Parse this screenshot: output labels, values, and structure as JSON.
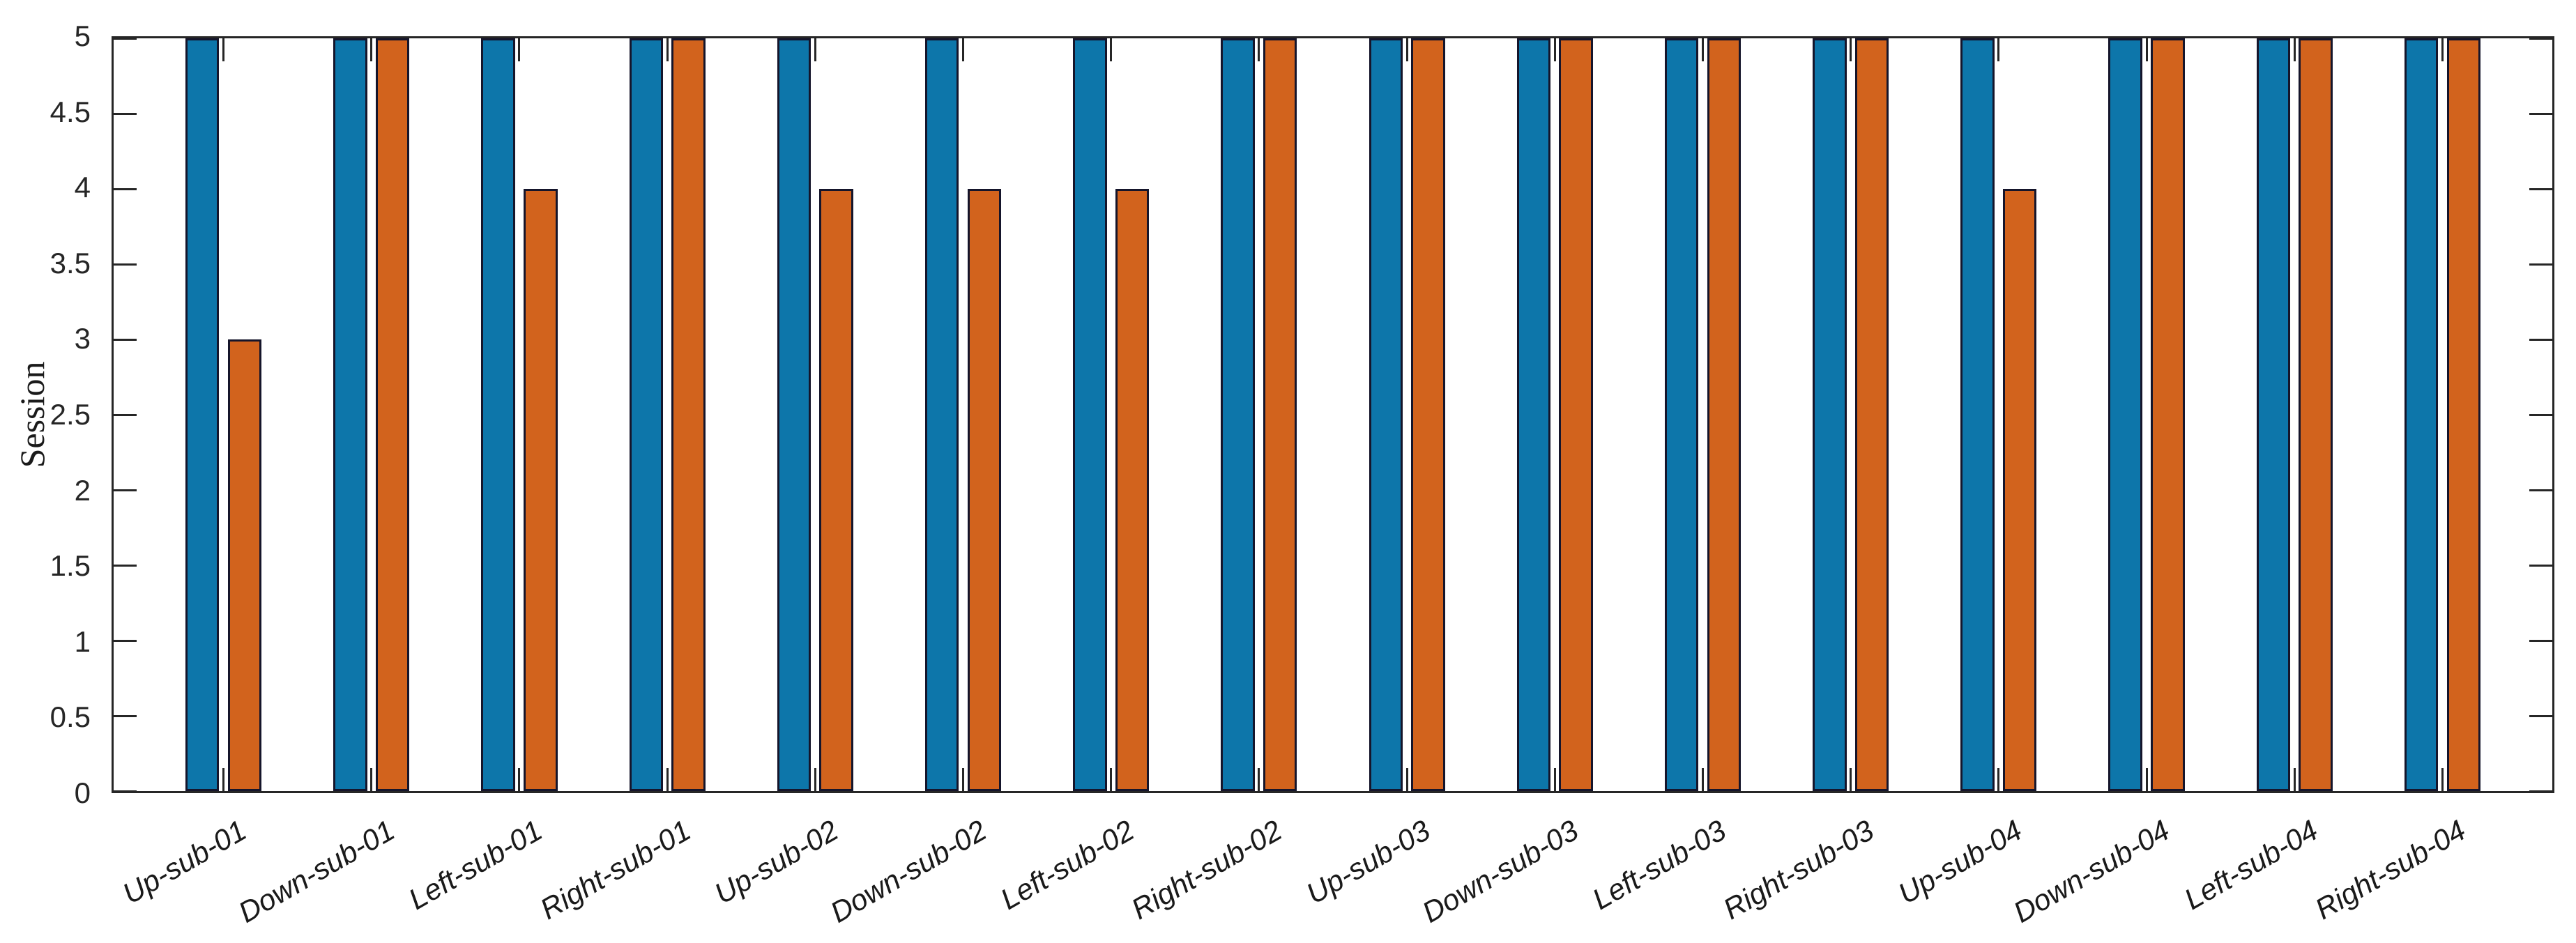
{
  "figure": {
    "background_color": "#ffffff",
    "axis_color": "#262626",
    "bar_edge_color": "#15152b"
  },
  "chart_data": {
    "type": "bar",
    "title": "",
    "xlabel": "",
    "ylabel": "Session",
    "ylim": [
      0,
      5
    ],
    "yticks": [
      0,
      0.5,
      1,
      1.5,
      2,
      2.5,
      3,
      3.5,
      4,
      4.5,
      5
    ],
    "ytick_labels": [
      "0",
      "0.5",
      "1",
      "1.5",
      "2",
      "2.5",
      "3",
      "3.5",
      "4",
      "4.5",
      "5"
    ],
    "categories": [
      "Up-sub-01",
      "Down-sub-01",
      "Left-sub-01",
      "Right-sub-01",
      "Up-sub-02",
      "Down-sub-02",
      "Left-sub-02",
      "Right-sub-02",
      "Up-sub-03",
      "Down-sub-03",
      "Left-sub-03",
      "Right-sub-03",
      "Up-sub-04",
      "Down-sub-04",
      "Left-sub-04",
      "Right-sub-04"
    ],
    "series": [
      {
        "name": "blue",
        "color": "#0d76aa",
        "values": [
          5,
          5,
          5,
          5,
          5,
          5,
          5,
          5,
          5,
          5,
          5,
          5,
          5,
          5,
          5,
          5
        ]
      },
      {
        "name": "orange",
        "color": "#d2631d",
        "values": [
          3,
          5,
          4,
          5,
          4,
          4,
          4,
          5,
          5,
          5,
          5,
          5,
          4,
          5,
          5,
          5
        ]
      }
    ],
    "grid": false,
    "legend": "none",
    "box": true,
    "tick_direction": "in",
    "xtick_angle_deg": -30,
    "layout": {
      "pad_units": 0.7425,
      "slot_units": 0.285714,
      "bar_units": 0.228571
    }
  }
}
